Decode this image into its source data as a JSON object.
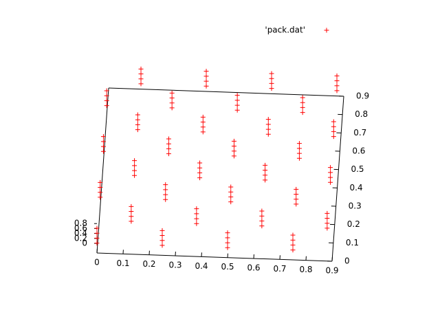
{
  "chart_data": {
    "type": "scatter3d",
    "series": [
      {
        "name": "'pack.dat'",
        "color": "#ff0000",
        "x": [
          0,
          0,
          0,
          0,
          0.25,
          0.25,
          0.25,
          0.25,
          0.5,
          0.5,
          0.5,
          0.5,
          0.75,
          0.75,
          0.75,
          0.75,
          0.125,
          0.125,
          0.125,
          0.125,
          0.375,
          0.375,
          0.375,
          0.375,
          0.625,
          0.625,
          0.625,
          0.625,
          0.875,
          0.875,
          0.875,
          0.875,
          0,
          0,
          0,
          0,
          0.25,
          0.25,
          0.25,
          0.25,
          0.5,
          0.5,
          0.5,
          0.5,
          0.75,
          0.75,
          0.75,
          0.75,
          0.125,
          0.125,
          0.125,
          0.125,
          0.375,
          0.375,
          0.375,
          0.375,
          0.625,
          0.625,
          0.625,
          0.625,
          0.875,
          0.875,
          0.875,
          0.875,
          0,
          0,
          0,
          0,
          0.25,
          0.25,
          0.25,
          0.25,
          0.5,
          0.5,
          0.5,
          0.5,
          0.75,
          0.75,
          0.75,
          0.75,
          0.125,
          0.125,
          0.125,
          0.125,
          0.375,
          0.375,
          0.375,
          0.375,
          0.625,
          0.625,
          0.625,
          0.625,
          0.875,
          0.875,
          0.875,
          0.875,
          0,
          0,
          0,
          0,
          0.25,
          0.25,
          0.25,
          0.25,
          0.5,
          0.5,
          0.5,
          0.5,
          0.75,
          0.75,
          0.75,
          0.75,
          0.125,
          0.125,
          0.125,
          0.125,
          0.375,
          0.375,
          0.375,
          0.375,
          0.625,
          0.625,
          0.625,
          0.625,
          0.875,
          0.875,
          0.875,
          0.875
        ],
        "y": [
          0,
          0,
          0,
          0,
          0,
          0,
          0,
          0,
          0,
          0,
          0,
          0,
          0,
          0,
          0,
          0,
          0.125,
          0.125,
          0.125,
          0.125,
          0.125,
          0.125,
          0.125,
          0.125,
          0.125,
          0.125,
          0.125,
          0.125,
          0.125,
          0.125,
          0.125,
          0.125,
          0.25,
          0.25,
          0.25,
          0.25,
          0.25,
          0.25,
          0.25,
          0.25,
          0.25,
          0.25,
          0.25,
          0.25,
          0.25,
          0.25,
          0.25,
          0.25,
          0.375,
          0.375,
          0.375,
          0.375,
          0.375,
          0.375,
          0.375,
          0.375,
          0.375,
          0.375,
          0.375,
          0.375,
          0.375,
          0.375,
          0.375,
          0.375,
          0.5,
          0.5,
          0.5,
          0.5,
          0.5,
          0.5,
          0.5,
          0.5,
          0.5,
          0.5,
          0.5,
          0.5,
          0.5,
          0.5,
          0.5,
          0.5,
          0.625,
          0.625,
          0.625,
          0.625,
          0.625,
          0.625,
          0.625,
          0.625,
          0.625,
          0.625,
          0.625,
          0.625,
          0.625,
          0.625,
          0.625,
          0.625,
          0.75,
          0.75,
          0.75,
          0.75,
          0.75,
          0.75,
          0.75,
          0.75,
          0.75,
          0.75,
          0.75,
          0.75,
          0.75,
          0.75,
          0.75,
          0.75,
          0.875,
          0.875,
          0.875,
          0.875,
          0.875,
          0.875,
          0.875,
          0.875,
          0.875,
          0.875,
          0.875,
          0.875,
          0.875,
          0.875,
          0.875,
          0.875
        ],
        "z": [
          0.4,
          0.6,
          0.8,
          1.0,
          0.4,
          0.6,
          0.8,
          1.0,
          0.4,
          0.6,
          0.8,
          1.0,
          0.4,
          0.6,
          0.8,
          1.0,
          0.4,
          0.6,
          0.8,
          1.0,
          0.4,
          0.6,
          0.8,
          1.0,
          0.4,
          0.6,
          0.8,
          1.0,
          0.4,
          0.6,
          0.8,
          1.0,
          0.4,
          0.6,
          0.8,
          1.0,
          0.4,
          0.6,
          0.8,
          1.0,
          0.4,
          0.6,
          0.8,
          1.0,
          0.4,
          0.6,
          0.8,
          1.0,
          0.4,
          0.6,
          0.8,
          1.0,
          0.4,
          0.6,
          0.8,
          1.0,
          0.4,
          0.6,
          0.8,
          1.0,
          0.4,
          0.6,
          0.8,
          1.0,
          0.4,
          0.6,
          0.8,
          1.0,
          0.4,
          0.6,
          0.8,
          1.0,
          0.4,
          0.6,
          0.8,
          1.0,
          0.4,
          0.6,
          0.8,
          1.0,
          0.4,
          0.6,
          0.8,
          1.0,
          0.4,
          0.6,
          0.8,
          1.0,
          0.4,
          0.6,
          0.8,
          1.0,
          0.4,
          0.6,
          0.8,
          1.0,
          0.4,
          0.6,
          0.8,
          1.0,
          0.4,
          0.6,
          0.8,
          1.0,
          0.4,
          0.6,
          0.8,
          1.0,
          0.4,
          0.6,
          0.8,
          1.0,
          0.4,
          0.6,
          0.8,
          1.0,
          0.4,
          0.6,
          0.8,
          1.0,
          0.4,
          0.6,
          0.8,
          1.0,
          0.4,
          0.6,
          0.8,
          1.0
        ]
      }
    ],
    "xlim": [
      0,
      0.9
    ],
    "xticks": [
      0,
      0.1,
      0.2,
      0.3,
      0.4,
      0.5,
      0.6,
      0.7,
      0.8,
      0.9
    ],
    "ylim": [
      0,
      0.9
    ],
    "yticks": [
      0,
      0.1,
      0.2,
      0.3,
      0.4,
      0.5,
      0.6,
      0.7,
      0.8,
      0.9
    ],
    "zlim": [
      0,
      0.8
    ],
    "zticks": [
      0,
      0.2,
      0.4,
      0.6,
      0.8
    ],
    "legend": "top-right"
  }
}
